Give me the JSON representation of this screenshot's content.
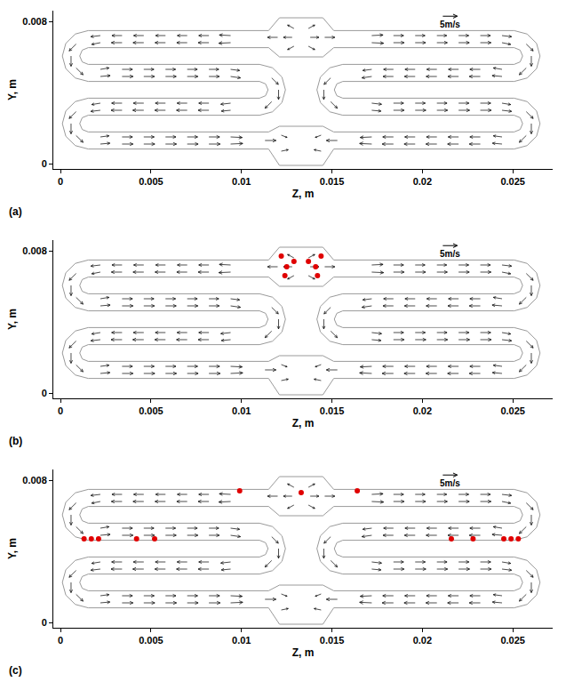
{
  "chart_data": {
    "type": "vector_field",
    "x_label": "Z, m",
    "y_label": "Y, m",
    "xlim": [
      -0.0004,
      0.0272
    ],
    "ylim": [
      -0.0003,
      0.0086
    ],
    "xticks": [
      0,
      0.005,
      0.01,
      0.015,
      0.02,
      0.025
    ],
    "yticks": [
      0,
      0.008
    ],
    "color": "#000000",
    "scale_arrow": {
      "label": "5m/s",
      "value": 5
    },
    "walls": [
      [
        [
          0.0115,
          0.00748
        ],
        [
          0.00153,
          0.00748
        ],
        [
          0.000815,
          0.007288
        ],
        [
          0.000292,
          0.006765
        ],
        [
          0.0001,
          0.00605
        ],
        [
          0.000292,
          0.005335
        ],
        [
          0.000815,
          0.004812
        ],
        [
          0.00153,
          0.00462
        ],
        [
          0.011,
          0.00462
        ],
        [
          0.011332,
          0.004482
        ],
        [
          0.01147,
          0.00415
        ],
        [
          0.011332,
          0.003818
        ],
        [
          0.011,
          0.00368
        ],
        [
          0.00153,
          0.00368
        ],
        [
          0.000815,
          0.003488
        ],
        [
          0.000292,
          0.002965
        ],
        [
          0.0001,
          0.00225
        ],
        [
          0.000292,
          0.001535
        ],
        [
          0.000815,
          0.001012
        ],
        [
          0.00153,
          0.00082
        ],
        [
          0.0115,
          0.00082
        ]
      ],
      [
        [
          0.0115,
          0.00652
        ],
        [
          0.00153,
          0.00652
        ],
        [
          0.001198,
          0.006382
        ],
        [
          0.00106,
          0.00605
        ],
        [
          0.001198,
          0.005718
        ],
        [
          0.00153,
          0.00558
        ],
        [
          0.011,
          0.00558
        ],
        [
          0.011715,
          0.005388
        ],
        [
          0.012238,
          0.004865
        ],
        [
          0.01243,
          0.00415
        ],
        [
          0.012238,
          0.003435
        ],
        [
          0.011715,
          0.002912
        ],
        [
          0.011,
          0.00272
        ],
        [
          0.00153,
          0.00272
        ],
        [
          0.001198,
          0.002582
        ],
        [
          0.00106,
          0.00225
        ],
        [
          0.001198,
          0.001918
        ],
        [
          0.00153,
          0.00178
        ],
        [
          0.0115,
          0.00178
        ]
      ],
      [
        [
          0.0151,
          0.00748
        ],
        [
          0.02507,
          0.00748
        ],
        [
          0.025785,
          0.007288
        ],
        [
          0.026308,
          0.006765
        ],
        [
          0.0265,
          0.00605
        ],
        [
          0.026308,
          0.005335
        ],
        [
          0.025785,
          0.004812
        ],
        [
          0.02507,
          0.00462
        ],
        [
          0.0156,
          0.00462
        ],
        [
          0.015268,
          0.004482
        ],
        [
          0.01513,
          0.00415
        ],
        [
          0.015268,
          0.003818
        ],
        [
          0.0156,
          0.00368
        ],
        [
          0.02507,
          0.00368
        ],
        [
          0.025785,
          0.003488
        ],
        [
          0.026308,
          0.002965
        ],
        [
          0.0265,
          0.00225
        ],
        [
          0.026308,
          0.001535
        ],
        [
          0.025785,
          0.001012
        ],
        [
          0.02507,
          0.00082
        ],
        [
          0.0151,
          0.00082
        ]
      ],
      [
        [
          0.0151,
          0.00652
        ],
        [
          0.02507,
          0.00652
        ],
        [
          0.025402,
          0.006382
        ],
        [
          0.02554,
          0.00605
        ],
        [
          0.025402,
          0.005718
        ],
        [
          0.02507,
          0.00558
        ],
        [
          0.0156,
          0.00558
        ],
        [
          0.014885,
          0.005388
        ],
        [
          0.014362,
          0.004865
        ],
        [
          0.01417,
          0.00415
        ],
        [
          0.014362,
          0.003435
        ],
        [
          0.014885,
          0.002912
        ],
        [
          0.0156,
          0.00272
        ],
        [
          0.02507,
          0.00272
        ],
        [
          0.025402,
          0.002582
        ],
        [
          0.02554,
          0.00225
        ],
        [
          0.025402,
          0.001918
        ],
        [
          0.02507,
          0.00178
        ],
        [
          0.0151,
          0.00178
        ]
      ],
      [
        [
          0.0115,
          0.00748
        ],
        [
          0.0121,
          0.0082
        ],
        [
          0.0145,
          0.0082
        ],
        [
          0.0151,
          0.00748
        ]
      ],
      [
        [
          0.0115,
          0.00652
        ],
        [
          0.0121,
          0.006
        ],
        [
          0.0145,
          0.006
        ],
        [
          0.0151,
          0.00652
        ]
      ],
      [
        [
          0.0115,
          0.00178
        ],
        [
          0.0121,
          0.0021
        ],
        [
          0.0145,
          0.0021
        ],
        [
          0.0151,
          0.00178
        ]
      ],
      [
        [
          0.0115,
          0.00082
        ],
        [
          0.0121,
          -0.0001
        ],
        [
          0.0145,
          -0.0001
        ],
        [
          0.0151,
          0.00082
        ]
      ]
    ],
    "vectors": [
      [
        0.0022,
        0.0072,
        -3.3,
        -0.4
      ],
      [
        0.0034,
        0.0072,
        -3.5,
        0
      ],
      [
        0.0046,
        0.0072,
        -3.5,
        0
      ],
      [
        0.0058,
        0.0072,
        -3.4,
        0
      ],
      [
        0.007,
        0.0072,
        -3.4,
        0
      ],
      [
        0.0082,
        0.0072,
        -3.5,
        0
      ],
      [
        0.0094,
        0.0072,
        -3.9,
        0.2
      ],
      [
        0.0022,
        0.0068,
        -3.0,
        -0.6
      ],
      [
        0.0034,
        0.0068,
        -3.7,
        0
      ],
      [
        0.0046,
        0.0068,
        -3.7,
        0
      ],
      [
        0.0058,
        0.0068,
        -3.6,
        0
      ],
      [
        0.007,
        0.0068,
        -3.6,
        0
      ],
      [
        0.0082,
        0.0068,
        -3.7,
        0
      ],
      [
        0.0094,
        0.0068,
        -4.1,
        -0.2
      ],
      [
        0.0022,
        0.0053,
        3.0,
        0.5
      ],
      [
        0.0034,
        0.0053,
        3.6,
        0
      ],
      [
        0.0046,
        0.0053,
        3.5,
        0
      ],
      [
        0.0058,
        0.0053,
        3.5,
        0
      ],
      [
        0.007,
        0.0053,
        3.5,
        0
      ],
      [
        0.0082,
        0.0053,
        3.4,
        0
      ],
      [
        0.0094,
        0.0053,
        3.1,
        -0.4
      ],
      [
        0.0022,
        0.0049,
        3.4,
        0.3
      ],
      [
        0.0034,
        0.0049,
        3.8,
        0
      ],
      [
        0.0046,
        0.0049,
        3.7,
        0
      ],
      [
        0.0058,
        0.0049,
        3.7,
        0
      ],
      [
        0.007,
        0.0049,
        3.7,
        0
      ],
      [
        0.0082,
        0.0049,
        3.6,
        0
      ],
      [
        0.0094,
        0.0049,
        3.4,
        -0.5
      ],
      [
        0.0022,
        0.0034,
        -3.0,
        -0.5
      ],
      [
        0.0034,
        0.0034,
        -3.6,
        0
      ],
      [
        0.0046,
        0.0034,
        -3.6,
        0
      ],
      [
        0.0058,
        0.0034,
        -3.5,
        0
      ],
      [
        0.007,
        0.0034,
        -3.5,
        0
      ],
      [
        0.0082,
        0.0034,
        -3.5,
        0
      ],
      [
        0.0094,
        0.0034,
        -3.4,
        -0.4
      ],
      [
        0.0022,
        0.003,
        -3.3,
        -0.4
      ],
      [
        0.0034,
        0.003,
        -3.8,
        0
      ],
      [
        0.0046,
        0.003,
        -3.8,
        0
      ],
      [
        0.0058,
        0.003,
        -3.7,
        0
      ],
      [
        0.007,
        0.003,
        -3.7,
        0
      ],
      [
        0.0082,
        0.003,
        -3.7,
        0
      ],
      [
        0.0094,
        0.003,
        -3.2,
        -0.3
      ],
      [
        0.0022,
        0.0015,
        3.0,
        0.4
      ],
      [
        0.0034,
        0.0015,
        3.6,
        0
      ],
      [
        0.0046,
        0.0015,
        3.6,
        0
      ],
      [
        0.0058,
        0.0015,
        3.6,
        0
      ],
      [
        0.007,
        0.0015,
        3.6,
        0
      ],
      [
        0.0082,
        0.0015,
        3.7,
        0
      ],
      [
        0.0094,
        0.0015,
        4.0,
        -0.2
      ],
      [
        0.0022,
        0.0011,
        3.3,
        0.3
      ],
      [
        0.0034,
        0.0011,
        3.8,
        0
      ],
      [
        0.0046,
        0.0011,
        3.8,
        0
      ],
      [
        0.0058,
        0.0011,
        3.8,
        0
      ],
      [
        0.007,
        0.0011,
        3.8,
        0
      ],
      [
        0.0082,
        0.0011,
        3.9,
        0
      ],
      [
        0.0094,
        0.0011,
        4.2,
        0.2
      ],
      [
        0.00086,
        0.00672,
        -2.4,
        -2.4
      ],
      [
        0.00058,
        0.00605,
        0,
        -3.6
      ],
      [
        0.00086,
        0.00538,
        2.4,
        -2.4
      ],
      [
        0.00086,
        0.00292,
        -2.4,
        -2.4
      ],
      [
        0.00058,
        0.00225,
        0,
        -3.6
      ],
      [
        0.00086,
        0.00158,
        2.4,
        -2.4
      ],
      [
        0.01167,
        0.00482,
        2.3,
        -2.3
      ],
      [
        0.01205,
        0.00415,
        0,
        -3.4
      ],
      [
        0.01167,
        0.00348,
        -2.3,
        -2.3
      ],
      [
        0.02574,
        0.00672,
        2.4,
        -2.4
      ],
      [
        0.02602,
        0.00605,
        0,
        -3.6
      ],
      [
        0.02574,
        0.00538,
        -2.4,
        -2.4
      ],
      [
        0.02574,
        0.00292,
        2.4,
        -2.4
      ],
      [
        0.02602,
        0.00225,
        0,
        -3.6
      ],
      [
        0.02574,
        0.00158,
        -2.4,
        -2.4
      ],
      [
        0.01493,
        0.00482,
        -2.3,
        -2.3
      ],
      [
        0.01455,
        0.00415,
        0,
        -3.4
      ],
      [
        0.01493,
        0.00348,
        2.3,
        -2.3
      ],
      [
        0.0244,
        0.0072,
        3.3,
        -0.4
      ],
      [
        0.0232,
        0.0072,
        3.5,
        0
      ],
      [
        0.022,
        0.0072,
        3.5,
        0
      ],
      [
        0.0208,
        0.0072,
        3.4,
        0
      ],
      [
        0.0196,
        0.0072,
        3.4,
        0
      ],
      [
        0.0184,
        0.0072,
        3.5,
        0
      ],
      [
        0.0172,
        0.0072,
        3.9,
        0.2
      ],
      [
        0.0244,
        0.0068,
        3.0,
        -0.6
      ],
      [
        0.0232,
        0.0068,
        3.7,
        0
      ],
      [
        0.022,
        0.0068,
        3.7,
        0
      ],
      [
        0.0208,
        0.0068,
        3.6,
        0
      ],
      [
        0.0196,
        0.0068,
        3.6,
        0
      ],
      [
        0.0184,
        0.0068,
        3.7,
        0
      ],
      [
        0.0172,
        0.0068,
        4.1,
        -0.2
      ],
      [
        0.0244,
        0.0053,
        -3.0,
        0.5
      ],
      [
        0.0232,
        0.0053,
        -3.6,
        0
      ],
      [
        0.022,
        0.0053,
        -3.5,
        0
      ],
      [
        0.0208,
        0.0053,
        -3.5,
        0
      ],
      [
        0.0196,
        0.0053,
        -3.5,
        0
      ],
      [
        0.0184,
        0.0053,
        -3.4,
        0
      ],
      [
        0.0172,
        0.0053,
        -3.1,
        -0.4
      ],
      [
        0.0244,
        0.0049,
        -3.4,
        0.3
      ],
      [
        0.0232,
        0.0049,
        -3.8,
        0
      ],
      [
        0.022,
        0.0049,
        -3.7,
        0
      ],
      [
        0.0208,
        0.0049,
        -3.7,
        0
      ],
      [
        0.0196,
        0.0049,
        -3.7,
        0
      ],
      [
        0.0184,
        0.0049,
        -3.6,
        0
      ],
      [
        0.0172,
        0.0049,
        -3.4,
        -0.5
      ],
      [
        0.0244,
        0.0034,
        3.0,
        -0.5
      ],
      [
        0.0232,
        0.0034,
        3.6,
        0
      ],
      [
        0.022,
        0.0034,
        3.6,
        0
      ],
      [
        0.0208,
        0.0034,
        3.5,
        0
      ],
      [
        0.0196,
        0.0034,
        3.5,
        0
      ],
      [
        0.0184,
        0.0034,
        3.5,
        0
      ],
      [
        0.0172,
        0.0034,
        3.4,
        -0.4
      ],
      [
        0.0244,
        0.003,
        3.3,
        -0.4
      ],
      [
        0.0232,
        0.003,
        3.8,
        0
      ],
      [
        0.022,
        0.003,
        3.8,
        0
      ],
      [
        0.0208,
        0.003,
        3.7,
        0
      ],
      [
        0.0196,
        0.003,
        3.7,
        0
      ],
      [
        0.0184,
        0.003,
        3.7,
        0
      ],
      [
        0.0172,
        0.003,
        3.2,
        -0.3
      ],
      [
        0.0244,
        0.0015,
        -3.0,
        0.4
      ],
      [
        0.0232,
        0.0015,
        -3.6,
        0
      ],
      [
        0.022,
        0.0015,
        -3.6,
        0
      ],
      [
        0.0208,
        0.0015,
        -3.6,
        0
      ],
      [
        0.0196,
        0.0015,
        -3.6,
        0
      ],
      [
        0.0184,
        0.0015,
        -3.7,
        0
      ],
      [
        0.0172,
        0.0015,
        -4.0,
        -0.2
      ],
      [
        0.0244,
        0.0011,
        -3.3,
        0.3
      ],
      [
        0.0232,
        0.0011,
        -3.8,
        0
      ],
      [
        0.022,
        0.0011,
        -3.8,
        0
      ],
      [
        0.0208,
        0.0011,
        -3.8,
        0
      ],
      [
        0.0196,
        0.0011,
        -3.8,
        0
      ],
      [
        0.0184,
        0.0011,
        -3.9,
        0
      ],
      [
        0.0172,
        0.0011,
        -4.2,
        0.2
      ],
      [
        0.0128,
        0.0071,
        -3.0,
        0
      ],
      [
        0.0138,
        0.0071,
        3.0,
        0
      ],
      [
        0.0129,
        0.0076,
        -2.2,
        1.2
      ],
      [
        0.0137,
        0.0076,
        2.2,
        1.2
      ],
      [
        0.0129,
        0.0066,
        -2.2,
        -1.2
      ],
      [
        0.0137,
        0.0066,
        2.2,
        -1.2
      ],
      [
        0.012,
        0.0071,
        -3.5,
        0
      ],
      [
        0.0146,
        0.0071,
        3.5,
        0
      ],
      [
        0.0113,
        0.0013,
        3.8,
        0
      ],
      [
        0.0153,
        0.0013,
        -3.8,
        0
      ],
      [
        0.0122,
        0.0016,
        2.0,
        -0.8
      ],
      [
        0.0144,
        0.0016,
        -2.0,
        -0.8
      ],
      [
        0.0122,
        0.0007,
        2.4,
        0.5
      ],
      [
        0.0144,
        0.0007,
        -2.4,
        0.5
      ]
    ],
    "panels": [
      {
        "label": "(a)",
        "red_regions": {
          "color": "#e00000",
          "points": []
        }
      },
      {
        "label": "(b)",
        "red_regions": {
          "color": "#e00000",
          "points": [
            [
              0.0122,
              0.0077
            ],
            [
              0.0125,
              0.0071
            ],
            [
              0.0129,
              0.0074
            ],
            [
              0.0137,
              0.0074
            ],
            [
              0.0141,
              0.0071
            ],
            [
              0.0144,
              0.0077
            ],
            [
              0.0124,
              0.0066
            ],
            [
              0.0142,
              0.0066
            ]
          ]
        }
      },
      {
        "label": "(c)",
        "red_regions": {
          "color": "#e00000",
          "points": [
            [
              0.0133,
              0.0073
            ],
            [
              0.0099,
              0.0074
            ],
            [
              0.0164,
              0.0074
            ],
            [
              0.0013,
              0.0047
            ],
            [
              0.0017,
              0.0047
            ],
            [
              0.0021,
              0.0047
            ],
            [
              0.0042,
              0.0047
            ],
            [
              0.0052,
              0.0047
            ],
            [
              0.0216,
              0.0047
            ],
            [
              0.0228,
              0.0047
            ],
            [
              0.0245,
              0.0047
            ],
            [
              0.0249,
              0.0047
            ],
            [
              0.0253,
              0.0047
            ]
          ]
        }
      }
    ]
  }
}
